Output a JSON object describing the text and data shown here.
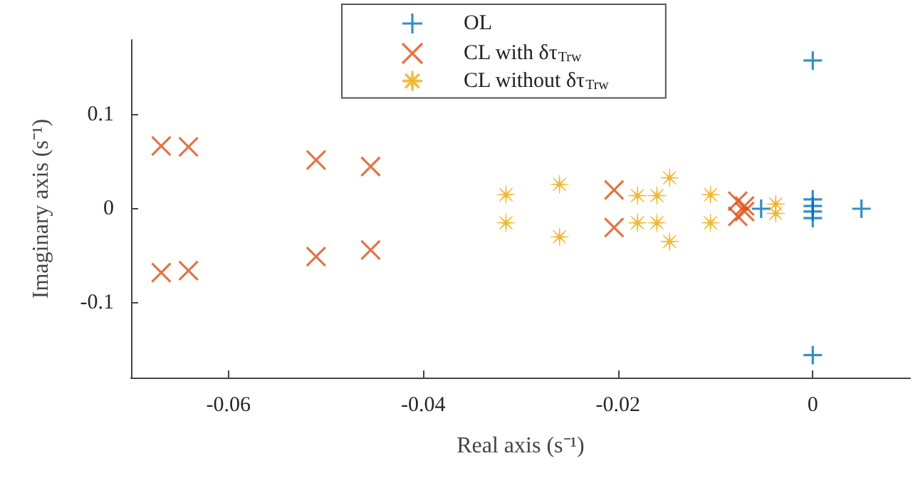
{
  "chart_data": {
    "type": "scatter",
    "xlabel": "Real axis (s⁻¹)",
    "ylabel": "Imaginary axis (s⁻¹)",
    "xlim": [
      -0.07,
      0.01
    ],
    "xticks": [
      -0.06,
      -0.04,
      -0.02,
      0
    ],
    "ylim": [
      -0.18,
      0.18
    ],
    "yticks": [
      -0.1,
      0,
      0.1
    ],
    "grid": false,
    "legend": "top",
    "series": [
      {
        "name": "OL",
        "color": "#0072bd",
        "marker": "plus",
        "x": [
          0,
          0,
          0,
          0,
          0,
          0,
          0.005,
          -0.0053
        ],
        "values": [
          0.158,
          -0.156,
          0.01,
          -0.01,
          0.003,
          -0.003,
          0,
          0
        ]
      },
      {
        "name": "CL with δτ$_{Trw}$",
        "color": "#d95319",
        "marker": "cross",
        "x": [
          -0.0669,
          -0.0669,
          -0.0641,
          -0.0641,
          -0.051,
          -0.051,
          -0.0454,
          -0.0454,
          -0.0204,
          -0.0204,
          -0.0077,
          -0.0077,
          -0.007,
          -0.007
        ],
        "values": [
          0.067,
          -0.068,
          0.066,
          -0.066,
          0.052,
          -0.051,
          0.045,
          -0.044,
          0.02,
          -0.02,
          0.008,
          -0.008,
          0.003,
          -0.003
        ]
      },
      {
        "name": "CL without δτ$_{Trw}$",
        "color": "#edb120",
        "marker": "star",
        "x": [
          -0.0315,
          -0.0315,
          -0.026,
          -0.026,
          -0.018,
          -0.018,
          -0.016,
          -0.016,
          -0.0147,
          -0.0147,
          -0.0105,
          -0.0105,
          -0.0038,
          -0.0038
        ],
        "values": [
          0.015,
          -0.015,
          0.026,
          -0.03,
          0.014,
          -0.015,
          0.014,
          -0.015,
          0.033,
          -0.035,
          0.015,
          -0.015,
          0.005,
          -0.005
        ]
      }
    ]
  }
}
